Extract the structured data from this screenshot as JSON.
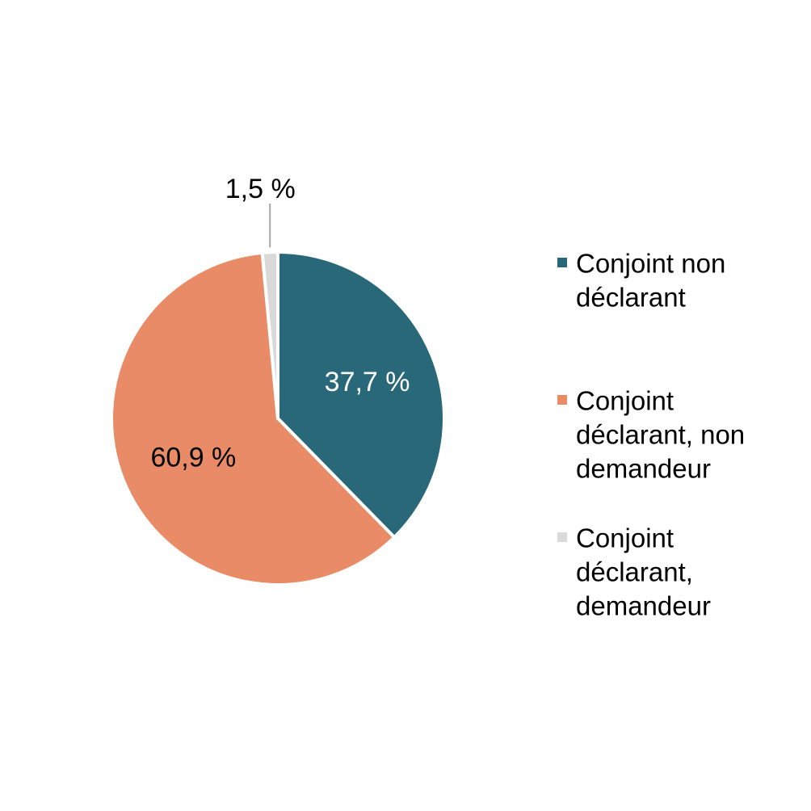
{
  "chart_data": {
    "type": "pie",
    "start_angle_deg": 0,
    "direction": "clockwise",
    "slices": [
      {
        "label_lines": [
          "Conjoint non",
          "déclarant"
        ],
        "value": 37.7,
        "value_label": "37,7 %",
        "color": "#296878",
        "label_color": "#ffffff"
      },
      {
        "label_lines": [
          "Conjoint",
          "déclarant, non",
          "demandeur"
        ],
        "value": 60.9,
        "value_label": "60,9 %",
        "color": "#e88b66",
        "label_color": "#000000"
      },
      {
        "label_lines": [
          "Conjoint",
          "déclarant,",
          "demandeur"
        ],
        "value": 1.5,
        "value_label": "1,5 %",
        "color": "#d9d9d9",
        "label_color": "#000000"
      }
    ],
    "legend_position": "right"
  }
}
